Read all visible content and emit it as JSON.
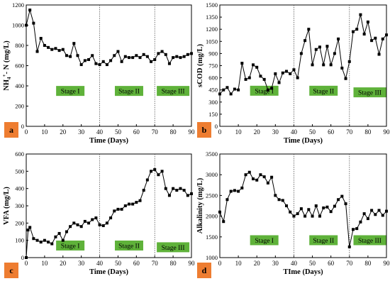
{
  "chart_data": [
    {
      "panel_label": "a",
      "type": "line",
      "xlabel": "Time (Days)",
      "ylabel": "NH4+-N (mg/L)",
      "ylabel_parts": [
        "NH",
        "4",
        "+",
        "- N (mg/L)"
      ],
      "xlim": [
        0,
        90
      ],
      "ylim": [
        0,
        1200
      ],
      "xticks": [
        0,
        10,
        20,
        30,
        40,
        50,
        60,
        70,
        80,
        90
      ],
      "yticks": [
        0,
        200,
        400,
        600,
        800,
        1000,
        1200
      ],
      "stage_dividers": [
        40,
        70
      ],
      "stages": [
        {
          "label": "Stage I",
          "x": 24,
          "y": 350
        },
        {
          "label": "Stage II",
          "x": 56,
          "y": 350
        },
        {
          "label": "Stage III",
          "x": 80,
          "y": 350
        }
      ],
      "x": [
        0,
        2,
        4,
        6,
        8,
        10,
        12,
        14,
        16,
        18,
        20,
        22,
        24,
        26,
        28,
        30,
        32,
        34,
        36,
        38,
        40,
        42,
        44,
        46,
        48,
        50,
        52,
        54,
        56,
        58,
        60,
        62,
        64,
        66,
        68,
        70,
        72,
        74,
        76,
        78,
        80,
        82,
        84,
        86,
        88,
        90
      ],
      "y": [
        1000,
        1150,
        1020,
        740,
        870,
        800,
        780,
        760,
        770,
        750,
        760,
        700,
        690,
        820,
        700,
        610,
        650,
        660,
        700,
        620,
        610,
        640,
        610,
        650,
        700,
        740,
        640,
        690,
        680,
        680,
        700,
        680,
        710,
        690,
        640,
        660,
        720,
        740,
        710,
        620,
        680,
        690,
        680,
        690,
        710,
        720
      ]
    },
    {
      "panel_label": "b",
      "type": "line",
      "xlabel": "Time (Days)",
      "ylabel": "sCOD (mg/L)",
      "xlim": [
        0,
        90
      ],
      "ylim": [
        0,
        1500
      ],
      "xticks": [
        0,
        10,
        20,
        30,
        40,
        50,
        60,
        70,
        80,
        90
      ],
      "yticks": [
        0,
        150,
        300,
        450,
        600,
        750,
        900,
        1050,
        1200,
        1350,
        1500
      ],
      "stage_dividers": [
        40,
        70
      ],
      "stages": [
        {
          "label": "Stage I",
          "x": 24,
          "y": 440
        },
        {
          "label": "Stage II",
          "x": 56,
          "y": 440
        },
        {
          "label": "Stage III",
          "x": 81,
          "y": 420
        }
      ],
      "x": [
        0,
        2,
        4,
        6,
        8,
        10,
        12,
        14,
        16,
        18,
        20,
        22,
        24,
        26,
        28,
        30,
        32,
        34,
        36,
        38,
        40,
        42,
        44,
        46,
        48,
        50,
        52,
        54,
        56,
        58,
        60,
        62,
        64,
        66,
        68,
        70,
        72,
        74,
        76,
        78,
        80,
        82,
        84,
        86,
        88,
        90
      ],
      "y": [
        400,
        450,
        480,
        400,
        460,
        450,
        780,
        580,
        600,
        760,
        730,
        620,
        580,
        450,
        470,
        650,
        540,
        660,
        680,
        650,
        700,
        600,
        900,
        1060,
        1200,
        760,
        950,
        980,
        760,
        990,
        760,
        900,
        1080,
        720,
        590,
        800,
        1170,
        1200,
        1380,
        1140,
        1290,
        1060,
        1090,
        890,
        1080,
        1130
      ]
    },
    {
      "panel_label": "c",
      "type": "line",
      "xlabel": "Time (Days)",
      "ylabel": "VFA (mg/L)",
      "xlim": [
        0,
        90
      ],
      "ylim": [
        0,
        600
      ],
      "xticks": [
        0,
        10,
        20,
        30,
        40,
        50,
        60,
        70,
        80,
        90
      ],
      "yticks": [
        0,
        100,
        200,
        300,
        400,
        500,
        600
      ],
      "stage_dividers": [
        40,
        70
      ],
      "stages": [
        {
          "label": "Stage I",
          "x": 24,
          "y": 70
        },
        {
          "label": "Stage II",
          "x": 56,
          "y": 70
        },
        {
          "label": "Stage III",
          "x": 80,
          "y": 60
        }
      ],
      "x": [
        0,
        1,
        2,
        4,
        6,
        8,
        10,
        12,
        14,
        16,
        18,
        20,
        22,
        24,
        26,
        28,
        30,
        32,
        34,
        36,
        38,
        40,
        42,
        44,
        46,
        48,
        50,
        52,
        54,
        56,
        58,
        60,
        62,
        64,
        66,
        68,
        70,
        72,
        74,
        76,
        78,
        80,
        82,
        84,
        86,
        88,
        90
      ],
      "y": [
        0,
        160,
        175,
        110,
        100,
        90,
        100,
        90,
        80,
        120,
        140,
        100,
        150,
        180,
        200,
        190,
        180,
        210,
        200,
        220,
        230,
        190,
        185,
        200,
        230,
        270,
        280,
        280,
        300,
        310,
        310,
        320,
        330,
        390,
        450,
        500,
        510,
        480,
        500,
        400,
        360,
        400,
        390,
        400,
        390,
        360,
        370
      ]
    },
    {
      "panel_label": "d",
      "type": "line",
      "xlabel": "TIme (Days)",
      "ylabel": "Alkalinity (mg/L)",
      "xlim": [
        0,
        90
      ],
      "ylim": [
        1000,
        3500
      ],
      "xticks": [
        0,
        10,
        20,
        30,
        40,
        50,
        60,
        70,
        80,
        90
      ],
      "yticks": [
        1000,
        1500,
        2000,
        2500,
        3000,
        3500
      ],
      "stage_dividers": [
        40,
        70
      ],
      "stages": [
        {
          "label": "Stage I",
          "x": 24,
          "y": 1420
        },
        {
          "label": "Stage II",
          "x": 56,
          "y": 1420
        },
        {
          "label": "Stage III",
          "x": 81,
          "y": 1420
        }
      ],
      "x": [
        0,
        2,
        4,
        6,
        8,
        10,
        12,
        14,
        16,
        18,
        20,
        22,
        24,
        26,
        28,
        30,
        32,
        34,
        36,
        38,
        40,
        42,
        44,
        46,
        48,
        50,
        52,
        54,
        56,
        58,
        60,
        62,
        64,
        66,
        68,
        70,
        72,
        74,
        76,
        78,
        80,
        82,
        84,
        86,
        88,
        90
      ],
      "y": [
        2100,
        1870,
        2400,
        2600,
        2620,
        2600,
        2680,
        3000,
        3060,
        2900,
        2870,
        3000,
        2950,
        2800,
        2940,
        2500,
        2400,
        2380,
        2250,
        2100,
        2000,
        2060,
        2180,
        2000,
        2160,
        2000,
        2250,
        2000,
        2200,
        2220,
        2110,
        2240,
        2400,
        2480,
        2300,
        1260,
        1680,
        1700,
        1860,
        2060,
        1940,
        2140,
        2040,
        2140,
        2020,
        2120
      ]
    }
  ]
}
